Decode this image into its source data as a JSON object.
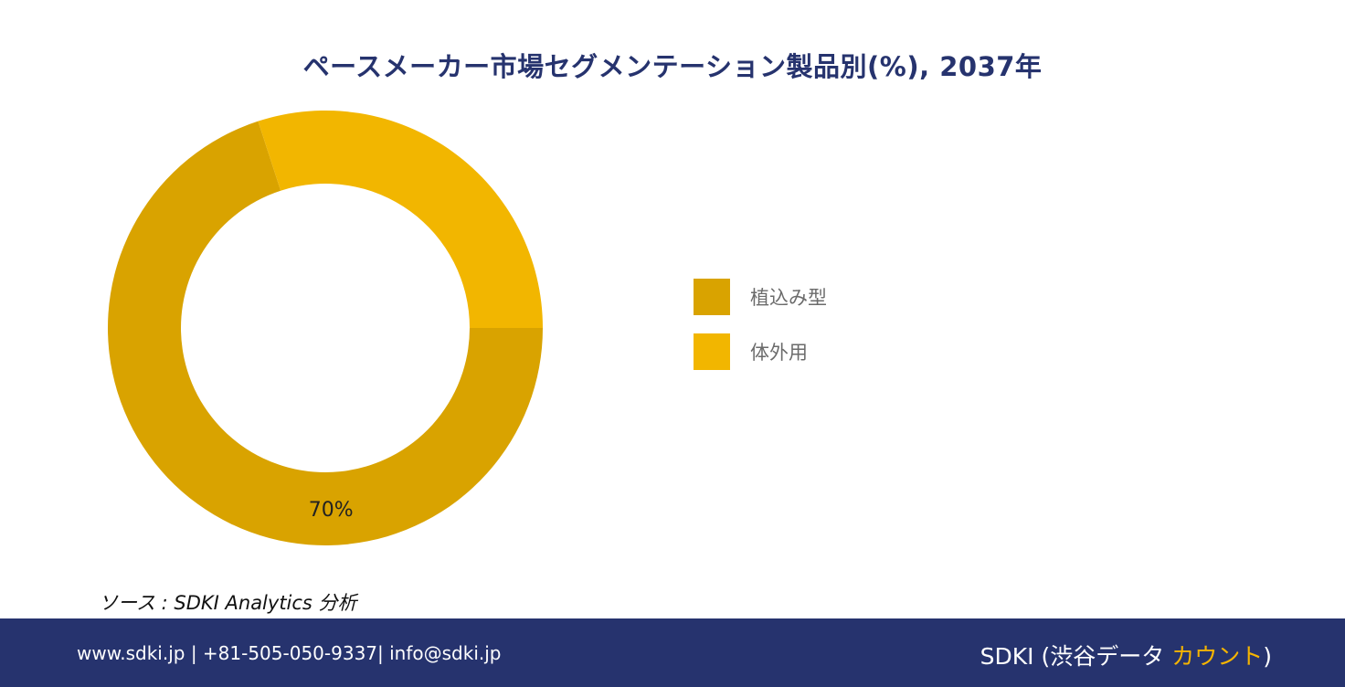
{
  "chart_data": {
    "type": "pie",
    "title": "ペースメーカー市場セグメンテーション製品別(%), 2037年",
    "categories": [
      "植込み型",
      "体外用"
    ],
    "values": [
      70,
      30
    ],
    "data_labels": [
      "70%",
      ""
    ],
    "colors": [
      "#d9a300",
      "#f2b600"
    ],
    "legend_position": "right"
  },
  "source": {
    "text": "ソース : SDKI Analytics 分析"
  },
  "footer": {
    "contact": "www.sdki.jp | +81-505-050-9337| info@sdki.jp",
    "brand_prefix": "SDKI (渋谷データ ",
    "brand_accent": "カウント",
    "brand_suffix": ")",
    "background": "#26336e",
    "accent_color": "#f5b400"
  }
}
